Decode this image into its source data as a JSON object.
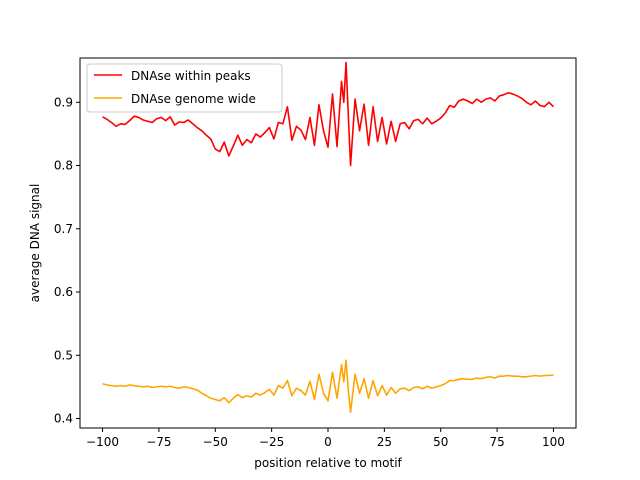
{
  "chart_data": {
    "type": "line",
    "title": "",
    "xlabel": "position relative to motif",
    "ylabel": "average DNA signal",
    "xlim": [
      -110,
      110
    ],
    "ylim": [
      0.385,
      0.97
    ],
    "xticks": [
      -100,
      -75,
      -50,
      -25,
      0,
      25,
      50,
      75,
      100
    ],
    "yticks": [
      0.4,
      0.5,
      0.6,
      0.7,
      0.8,
      0.9
    ],
    "legend_position": "top-left",
    "grid": false,
    "series": [
      {
        "name": "DNAse within peaks",
        "color": "#ff0000",
        "x": [
          -100,
          -98,
          -96,
          -94,
          -92,
          -90,
          -88,
          -86,
          -84,
          -82,
          -80,
          -78,
          -76,
          -74,
          -72,
          -70,
          -68,
          -66,
          -64,
          -62,
          -60,
          -58,
          -56,
          -54,
          -52,
          -50,
          -48,
          -46,
          -44,
          -42,
          -40,
          -38,
          -36,
          -34,
          -32,
          -30,
          -28,
          -26,
          -24,
          -22,
          -20,
          -18,
          -16,
          -14,
          -12,
          -10,
          -8,
          -6,
          -4,
          -2,
          0,
          2,
          4,
          6,
          7,
          8,
          9,
          10,
          12,
          14,
          16,
          18,
          20,
          22,
          24,
          26,
          28,
          30,
          32,
          34,
          36,
          38,
          40,
          42,
          44,
          46,
          48,
          50,
          52,
          54,
          56,
          58,
          60,
          62,
          64,
          66,
          68,
          70,
          72,
          74,
          76,
          78,
          80,
          82,
          84,
          86,
          88,
          90,
          92,
          94,
          96,
          98,
          100
        ],
        "values": [
          0.877,
          0.873,
          0.868,
          0.862,
          0.866,
          0.865,
          0.871,
          0.878,
          0.876,
          0.872,
          0.87,
          0.868,
          0.874,
          0.876,
          0.871,
          0.877,
          0.864,
          0.869,
          0.868,
          0.872,
          0.866,
          0.86,
          0.855,
          0.848,
          0.842,
          0.826,
          0.822,
          0.837,
          0.815,
          0.831,
          0.848,
          0.832,
          0.841,
          0.836,
          0.85,
          0.845,
          0.852,
          0.86,
          0.842,
          0.868,
          0.866,
          0.893,
          0.84,
          0.862,
          0.856,
          0.841,
          0.876,
          0.832,
          0.896,
          0.855,
          0.829,
          0.913,
          0.83,
          0.933,
          0.9,
          0.963,
          0.88,
          0.8,
          0.905,
          0.855,
          0.897,
          0.832,
          0.893,
          0.838,
          0.876,
          0.834,
          0.87,
          0.838,
          0.866,
          0.868,
          0.858,
          0.871,
          0.873,
          0.866,
          0.875,
          0.866,
          0.87,
          0.875,
          0.883,
          0.895,
          0.892,
          0.902,
          0.905,
          0.902,
          0.898,
          0.905,
          0.9,
          0.905,
          0.907,
          0.902,
          0.91,
          0.912,
          0.915,
          0.913,
          0.91,
          0.906,
          0.9,
          0.896,
          0.902,
          0.895,
          0.893,
          0.9,
          0.893
        ]
      },
      {
        "name": "DNAse genome wide",
        "color": "#ffa500",
        "x": [
          -100,
          -98,
          -96,
          -94,
          -92,
          -90,
          -88,
          -86,
          -84,
          -82,
          -80,
          -78,
          -76,
          -74,
          -72,
          -70,
          -68,
          -66,
          -64,
          -62,
          -60,
          -58,
          -56,
          -54,
          -52,
          -50,
          -48,
          -46,
          -44,
          -42,
          -40,
          -38,
          -36,
          -34,
          -32,
          -30,
          -28,
          -26,
          -24,
          -22,
          -20,
          -18,
          -16,
          -14,
          -12,
          -10,
          -8,
          -6,
          -4,
          -2,
          0,
          2,
          4,
          6,
          7,
          8,
          9,
          10,
          12,
          14,
          16,
          18,
          20,
          22,
          24,
          26,
          28,
          30,
          32,
          34,
          36,
          38,
          40,
          42,
          44,
          46,
          48,
          50,
          52,
          54,
          56,
          58,
          60,
          62,
          64,
          66,
          68,
          70,
          72,
          74,
          76,
          78,
          80,
          82,
          84,
          86,
          88,
          90,
          92,
          94,
          96,
          98,
          100
        ],
        "values": [
          0.455,
          0.453,
          0.452,
          0.451,
          0.452,
          0.451,
          0.453,
          0.452,
          0.451,
          0.45,
          0.451,
          0.449,
          0.45,
          0.451,
          0.45,
          0.451,
          0.449,
          0.448,
          0.45,
          0.449,
          0.447,
          0.445,
          0.44,
          0.436,
          0.432,
          0.43,
          0.428,
          0.433,
          0.425,
          0.432,
          0.438,
          0.433,
          0.436,
          0.434,
          0.44,
          0.437,
          0.441,
          0.446,
          0.437,
          0.452,
          0.448,
          0.46,
          0.436,
          0.448,
          0.444,
          0.437,
          0.459,
          0.43,
          0.47,
          0.44,
          0.428,
          0.473,
          0.432,
          0.485,
          0.458,
          0.492,
          0.445,
          0.41,
          0.47,
          0.44,
          0.463,
          0.432,
          0.46,
          0.436,
          0.452,
          0.437,
          0.449,
          0.44,
          0.447,
          0.448,
          0.444,
          0.449,
          0.45,
          0.447,
          0.451,
          0.448,
          0.45,
          0.452,
          0.455,
          0.46,
          0.46,
          0.462,
          0.463,
          0.462,
          0.462,
          0.464,
          0.463,
          0.465,
          0.466,
          0.464,
          0.467,
          0.467,
          0.468,
          0.467,
          0.467,
          0.466,
          0.466,
          0.467,
          0.468,
          0.467,
          0.468,
          0.468,
          0.469
        ]
      }
    ]
  }
}
